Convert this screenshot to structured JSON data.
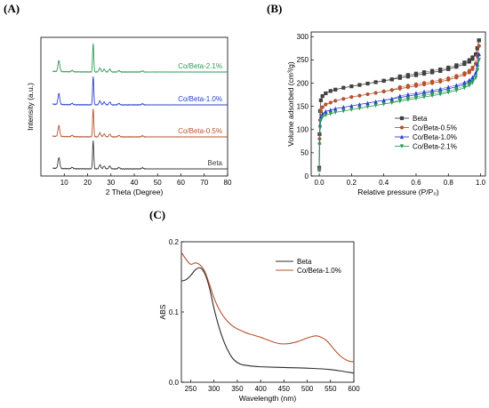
{
  "panels": {
    "a_label": "(A)",
    "b_label": "(B)",
    "c_label": "(C)"
  },
  "chart_data": [
    {
      "type": "line",
      "panel": "(A)",
      "title": "",
      "xlabel": "2 Theta (Degree)",
      "ylabel": "Intensity (a.u.)",
      "xlim": [
        0,
        80
      ],
      "xticks": [
        10,
        20,
        30,
        40,
        50,
        60,
        70,
        80
      ],
      "yticks_shown": false,
      "legend_style": "inline labels right of each stacked trace",
      "series": [
        {
          "name": "Beta",
          "color": "#3a3a3a",
          "offset": 0,
          "peaks": [
            {
              "x": 7.7,
              "h": 0.38
            },
            {
              "x": 13.4,
              "h": 0.05
            },
            {
              "x": 22.4,
              "h": 1.0
            },
            {
              "x": 25.3,
              "h": 0.14
            },
            {
              "x": 27.1,
              "h": 0.1
            },
            {
              "x": 29.5,
              "h": 0.1
            },
            {
              "x": 33.4,
              "h": 0.05
            },
            {
              "x": 43.5,
              "h": 0.04
            }
          ]
        },
        {
          "name": "Co/Beta-0.5%",
          "color": "#b5532e",
          "offset": 1,
          "peaks": [
            {
              "x": 7.7,
              "h": 0.38
            },
            {
              "x": 13.4,
              "h": 0.05
            },
            {
              "x": 22.4,
              "h": 1.0
            },
            {
              "x": 25.3,
              "h": 0.14
            },
            {
              "x": 27.1,
              "h": 0.1
            },
            {
              "x": 29.5,
              "h": 0.1
            },
            {
              "x": 33.4,
              "h": 0.05
            },
            {
              "x": 43.5,
              "h": 0.04
            }
          ]
        },
        {
          "name": "Co/Beta-1.0%",
          "color": "#2a3fcf",
          "offset": 2,
          "peaks": [
            {
              "x": 7.7,
              "h": 0.38
            },
            {
              "x": 13.4,
              "h": 0.05
            },
            {
              "x": 22.4,
              "h": 1.0
            },
            {
              "x": 25.3,
              "h": 0.14
            },
            {
              "x": 27.1,
              "h": 0.1
            },
            {
              "x": 29.5,
              "h": 0.1
            },
            {
              "x": 33.4,
              "h": 0.05
            },
            {
              "x": 43.5,
              "h": 0.04
            }
          ]
        },
        {
          "name": "Co/Beta-2.1%",
          "color": "#2e9a5a",
          "offset": 3,
          "peaks": [
            {
              "x": 7.7,
              "h": 0.38
            },
            {
              "x": 13.4,
              "h": 0.05
            },
            {
              "x": 22.4,
              "h": 1.0
            },
            {
              "x": 25.3,
              "h": 0.14
            },
            {
              "x": 27.1,
              "h": 0.1
            },
            {
              "x": 29.5,
              "h": 0.1
            },
            {
              "x": 33.4,
              "h": 0.05
            },
            {
              "x": 43.5,
              "h": 0.04
            }
          ]
        }
      ]
    },
    {
      "type": "scatter",
      "panel": "(B)",
      "title": "",
      "xlabel": "Relative pressure (P/P₀)",
      "ylabel": "Volume adsorbed (cm³/g)",
      "xlim": [
        -0.05,
        1.03
      ],
      "ylim": [
        0,
        310
      ],
      "xticks": [
        0.0,
        0.2,
        0.4,
        0.6,
        0.8,
        1.0
      ],
      "yticks": [
        0,
        50,
        100,
        150,
        200,
        250,
        300
      ],
      "legend_position": "bottom-right",
      "series": [
        {
          "name": "Beta",
          "color": "#404040",
          "marker": "square",
          "x": [
            0.0,
            0.002,
            0.005,
            0.01,
            0.02,
            0.04,
            0.07,
            0.1,
            0.15,
            0.2,
            0.25,
            0.3,
            0.35,
            0.4,
            0.45,
            0.5,
            0.55,
            0.6,
            0.65,
            0.7,
            0.75,
            0.8,
            0.85,
            0.9,
            0.93,
            0.95,
            0.97,
            0.98,
            0.99
          ],
          "y": [
            18,
            90,
            140,
            163,
            172,
            178,
            183,
            186,
            190,
            193,
            196,
            199,
            202,
            205,
            208,
            211,
            214,
            217,
            220,
            223,
            226,
            230,
            235,
            241,
            246,
            252,
            262,
            275,
            292
          ]
        },
        {
          "name": "Co/Beta-0.5%",
          "color": "#b5532e",
          "marker": "circle",
          "x": [
            0.0,
            0.002,
            0.005,
            0.01,
            0.02,
            0.04,
            0.07,
            0.1,
            0.15,
            0.2,
            0.25,
            0.3,
            0.35,
            0.4,
            0.45,
            0.5,
            0.55,
            0.6,
            0.65,
            0.7,
            0.75,
            0.8,
            0.85,
            0.9,
            0.93,
            0.95,
            0.97,
            0.98,
            0.99
          ],
          "y": [
            15,
            80,
            120,
            140,
            148,
            154,
            158,
            162,
            166,
            170,
            173,
            176,
            179,
            182,
            185,
            188,
            191,
            194,
            197,
            200,
            203,
            207,
            212,
            218,
            223,
            230,
            242,
            258,
            280
          ]
        },
        {
          "name": "Co/Beta-1.0%",
          "color": "#2a3fcf",
          "marker": "triangle-up",
          "x": [
            0.0,
            0.002,
            0.005,
            0.01,
            0.02,
            0.04,
            0.07,
            0.1,
            0.15,
            0.2,
            0.25,
            0.3,
            0.35,
            0.4,
            0.45,
            0.5,
            0.55,
            0.6,
            0.65,
            0.7,
            0.75,
            0.8,
            0.85,
            0.9,
            0.93,
            0.95,
            0.97,
            0.98,
            0.99
          ],
          "y": [
            14,
            72,
            110,
            128,
            134,
            139,
            142,
            145,
            148,
            151,
            154,
            157,
            160,
            163,
            166,
            169,
            172,
            175,
            178,
            181,
            184,
            188,
            192,
            198,
            203,
            209,
            222,
            240,
            262
          ]
        },
        {
          "name": "Co/Beta-2.1%",
          "color": "#2e9a5a",
          "marker": "triangle-down",
          "x": [
            0.0,
            0.002,
            0.005,
            0.01,
            0.02,
            0.04,
            0.07,
            0.1,
            0.15,
            0.2,
            0.25,
            0.3,
            0.35,
            0.4,
            0.45,
            0.5,
            0.55,
            0.6,
            0.65,
            0.7,
            0.75,
            0.8,
            0.85,
            0.9,
            0.93,
            0.95,
            0.97,
            0.98,
            0.99
          ],
          "y": [
            12,
            68,
            103,
            120,
            127,
            131,
            134,
            137,
            140,
            143,
            146,
            149,
            152,
            155,
            158,
            161,
            164,
            167,
            170,
            173,
            176,
            180,
            184,
            190,
            195,
            201,
            212,
            228,
            250
          ]
        }
      ]
    },
    {
      "type": "line",
      "panel": "(C)",
      "title": "",
      "xlabel": "Wavelength (nm)",
      "ylabel": "ABS",
      "xlim": [
        230,
        600
      ],
      "ylim": [
        0.0,
        0.2
      ],
      "xticks": [
        250,
        300,
        350,
        400,
        450,
        500,
        550,
        600
      ],
      "yticks": [
        0.0,
        0.1,
        0.2
      ],
      "legend_position": "top-right",
      "series": [
        {
          "name": "Beta",
          "color": "#2b2b2b",
          "x": [
            230,
            240,
            250,
            260,
            270,
            280,
            290,
            300,
            310,
            320,
            330,
            340,
            350,
            360,
            370,
            380,
            400,
            450,
            500,
            550,
            600
          ],
          "y": [
            0.144,
            0.146,
            0.152,
            0.16,
            0.163,
            0.155,
            0.135,
            0.105,
            0.08,
            0.06,
            0.045,
            0.034,
            0.028,
            0.025,
            0.024,
            0.023,
            0.022,
            0.021,
            0.02,
            0.018,
            0.013
          ]
        },
        {
          "name": "Co/Beta-1.0%",
          "color": "#b5532e",
          "x": [
            230,
            240,
            250,
            260,
            270,
            280,
            290,
            300,
            310,
            320,
            330,
            340,
            350,
            360,
            370,
            380,
            400,
            420,
            440,
            460,
            480,
            500,
            510,
            520,
            530,
            540,
            550,
            560,
            570,
            580,
            590,
            600
          ],
          "y": [
            0.185,
            0.175,
            0.168,
            0.17,
            0.167,
            0.158,
            0.14,
            0.12,
            0.105,
            0.094,
            0.086,
            0.08,
            0.076,
            0.073,
            0.07,
            0.068,
            0.064,
            0.059,
            0.055,
            0.055,
            0.058,
            0.063,
            0.065,
            0.066,
            0.064,
            0.06,
            0.053,
            0.045,
            0.038,
            0.033,
            0.03,
            0.029
          ]
        }
      ]
    }
  ]
}
